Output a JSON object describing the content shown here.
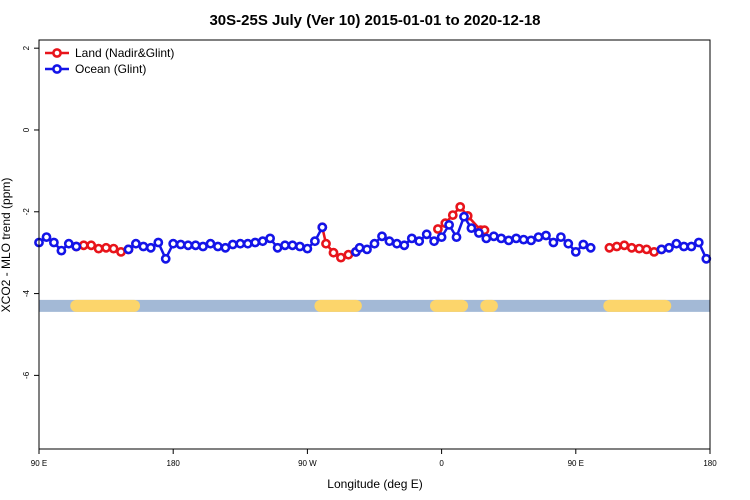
{
  "chart_data": {
    "type": "line",
    "title": "30S-25S July (Ver 10)   2015-01-01 to 2020-12-18",
    "xlabel": "Longitude (deg E)",
    "ylabel": "XCO2 - MLO trend (ppm)",
    "xlim": [
      90,
      450
    ],
    "ylim": [
      -7.8,
      2.2
    ],
    "x_ticks": [
      {
        "value": 90,
        "label": "90 E"
      },
      {
        "value": 162,
        "label": "180"
      },
      {
        "value": 234,
        "label": "90 W"
      },
      {
        "value": 306,
        "label": "0"
      },
      {
        "value": 378,
        "label": "90 E"
      },
      {
        "value": 450,
        "label": "180"
      }
    ],
    "y_ticks": [
      {
        "value": 2,
        "label": "2"
      },
      {
        "value": 0,
        "label": "0"
      },
      {
        "value": -2,
        "label": "-2"
      },
      {
        "value": -4,
        "label": "-4"
      },
      {
        "value": -6,
        "label": "-6"
      }
    ],
    "grid": false,
    "legend_position": "top-left",
    "land_mask": {
      "y": -4.3,
      "ocean_color": "#a3b9d6",
      "land_color": "#fcd56b",
      "land_segments": [
        [
          110,
          141
        ],
        [
          241,
          260
        ],
        [
          303,
          317
        ],
        [
          330,
          333
        ],
        [
          396,
          426
        ]
      ]
    },
    "series": [
      {
        "name": "Land (Nadir&Glint)",
        "color": "#e8141b",
        "segments": [
          [
            [
              110,
              -2.85
            ],
            [
              114,
              -2.82
            ],
            [
              118,
              -2.82
            ],
            [
              122,
              -2.9
            ],
            [
              126,
              -2.88
            ],
            [
              130,
              -2.9
            ],
            [
              134,
              -2.98
            ],
            [
              138,
              -2.92
            ]
          ],
          [
            [
              242,
              -2.38
            ],
            [
              244,
              -2.78
            ],
            [
              248,
              -3.0
            ],
            [
              252,
              -3.12
            ],
            [
              256,
              -3.05
            ],
            [
              260,
              -2.98
            ]
          ],
          [
            [
              304,
              -2.42
            ],
            [
              308,
              -2.28
            ],
            [
              312,
              -2.08
            ],
            [
              316,
              -1.88
            ],
            [
              320,
              -2.1
            ],
            [
              327,
              -2.45
            ],
            [
              329,
              -2.45
            ]
          ],
          [
            [
              396,
              -2.88
            ],
            [
              400,
              -2.85
            ],
            [
              404,
              -2.82
            ],
            [
              408,
              -2.88
            ],
            [
              412,
              -2.9
            ],
            [
              416,
              -2.92
            ],
            [
              420,
              -2.98
            ],
            [
              424,
              -2.92
            ]
          ]
        ]
      },
      {
        "name": "Ocean (Glint)",
        "color": "#1414e8",
        "segments": [
          [
            [
              90,
              -2.75
            ],
            [
              94,
              -2.62
            ],
            [
              98,
              -2.75
            ],
            [
              102,
              -2.95
            ],
            [
              106,
              -2.78
            ],
            [
              110,
              -2.85
            ]
          ],
          [
            [
              138,
              -2.92
            ],
            [
              142,
              -2.78
            ],
            [
              146,
              -2.85
            ],
            [
              150,
              -2.88
            ],
            [
              154,
              -2.75
            ],
            [
              158,
              -3.15
            ],
            [
              162,
              -2.78
            ],
            [
              166,
              -2.8
            ],
            [
              170,
              -2.82
            ],
            [
              174,
              -2.82
            ],
            [
              178,
              -2.85
            ],
            [
              182,
              -2.78
            ],
            [
              186,
              -2.85
            ],
            [
              190,
              -2.88
            ],
            [
              194,
              -2.8
            ],
            [
              198,
              -2.78
            ],
            [
              202,
              -2.78
            ],
            [
              206,
              -2.75
            ],
            [
              210,
              -2.72
            ],
            [
              214,
              -2.65
            ],
            [
              218,
              -2.88
            ],
            [
              222,
              -2.82
            ],
            [
              226,
              -2.82
            ],
            [
              230,
              -2.85
            ],
            [
              234,
              -2.9
            ],
            [
              238,
              -2.72
            ],
            [
              242,
              -2.38
            ]
          ],
          [
            [
              260,
              -2.98
            ],
            [
              262,
              -2.88
            ],
            [
              266,
              -2.92
            ],
            [
              270,
              -2.78
            ],
            [
              274,
              -2.6
            ],
            [
              278,
              -2.72
            ],
            [
              282,
              -2.78
            ],
            [
              286,
              -2.82
            ],
            [
              290,
              -2.65
            ],
            [
              294,
              -2.72
            ],
            [
              298,
              -2.55
            ],
            [
              302,
              -2.72
            ],
            [
              306,
              -2.62
            ],
            [
              310,
              -2.32
            ],
            [
              314,
              -2.62
            ],
            [
              318,
              -2.12
            ],
            [
              322,
              -2.4
            ],
            [
              326,
              -2.52
            ],
            [
              330,
              -2.65
            ],
            [
              334,
              -2.6
            ],
            [
              338,
              -2.65
            ],
            [
              342,
              -2.7
            ],
            [
              346,
              -2.65
            ],
            [
              350,
              -2.68
            ],
            [
              354,
              -2.7
            ],
            [
              358,
              -2.62
            ],
            [
              362,
              -2.58
            ],
            [
              366,
              -2.75
            ],
            [
              370,
              -2.62
            ],
            [
              374,
              -2.78
            ],
            [
              378,
              -2.98
            ],
            [
              382,
              -2.8
            ],
            [
              386,
              -2.88
            ]
          ],
          [
            [
              424,
              -2.92
            ],
            [
              428,
              -2.88
            ],
            [
              432,
              -2.78
            ],
            [
              436,
              -2.85
            ],
            [
              440,
              -2.85
            ],
            [
              444,
              -2.75
            ],
            [
              448,
              -3.15
            ]
          ]
        ]
      }
    ]
  }
}
